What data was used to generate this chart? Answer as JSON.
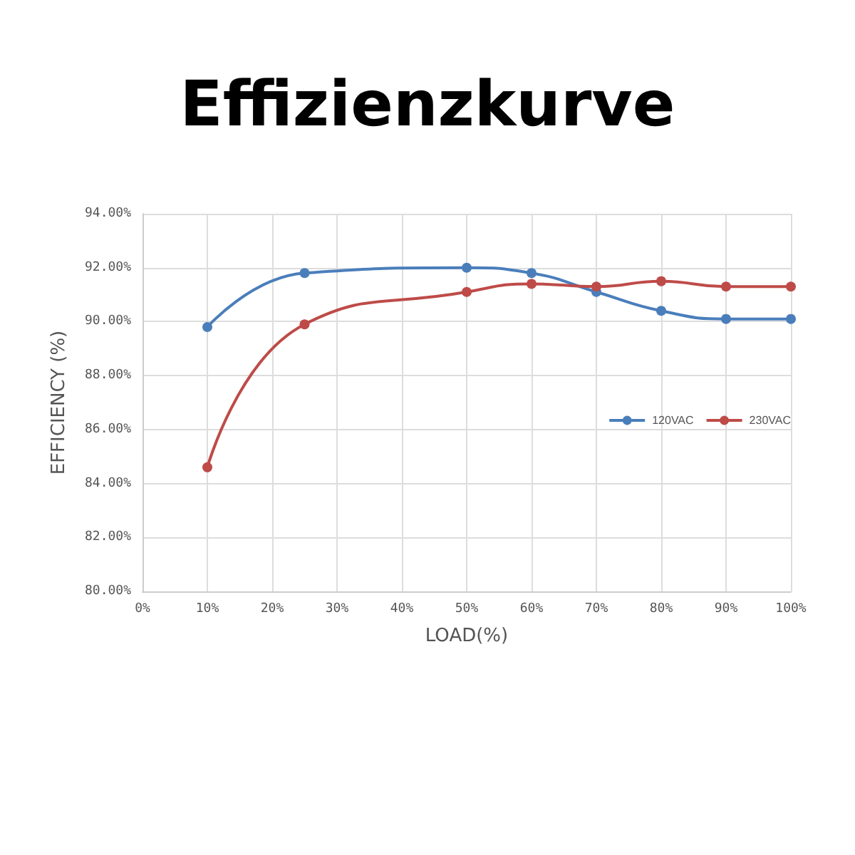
{
  "chart_data": {
    "type": "line",
    "title": "Effizienzkurve",
    "xlabel": "LOAD(%)",
    "ylabel": "EFFICIENCY (%)",
    "x": [
      10,
      25,
      50,
      60,
      70,
      80,
      90,
      100
    ],
    "series": [
      {
        "name": "120VAC",
        "color": "#4a7ebb",
        "values": [
          89.8,
          91.8,
          92.0,
          91.8,
          91.1,
          90.4,
          90.1,
          90.1
        ]
      },
      {
        "name": "230VAC",
        "color": "#be4b48",
        "values": [
          84.6,
          89.9,
          91.1,
          91.4,
          91.3,
          91.5,
          91.3,
          91.3
        ]
      }
    ],
    "xlim": [
      0,
      100
    ],
    "xticks": [
      {
        "value": 0,
        "label": "0%"
      },
      {
        "value": 10,
        "label": "10%"
      },
      {
        "value": 20,
        "label": "20%"
      },
      {
        "value": 30,
        "label": "30%"
      },
      {
        "value": 40,
        "label": "40%"
      },
      {
        "value": 50,
        "label": "50%"
      },
      {
        "value": 60,
        "label": "60%"
      },
      {
        "value": 70,
        "label": "70%"
      },
      {
        "value": 80,
        "label": "80%"
      },
      {
        "value": 90,
        "label": "90%"
      },
      {
        "value": 100,
        "label": "100%"
      }
    ],
    "ylim": [
      80,
      94
    ],
    "yticks": [
      {
        "value": 80,
        "label": "80.00%"
      },
      {
        "value": 82,
        "label": "82.00%"
      },
      {
        "value": 84,
        "label": "84.00%"
      },
      {
        "value": 86,
        "label": "86.00%"
      },
      {
        "value": 88,
        "label": "88.00%"
      },
      {
        "value": 90,
        "label": "90.00%"
      },
      {
        "value": 92,
        "label": "92.00%"
      },
      {
        "value": 94,
        "label": "94.00%"
      }
    ],
    "grid": true,
    "legend": "right",
    "marker": "circle",
    "line_style": "solid"
  }
}
